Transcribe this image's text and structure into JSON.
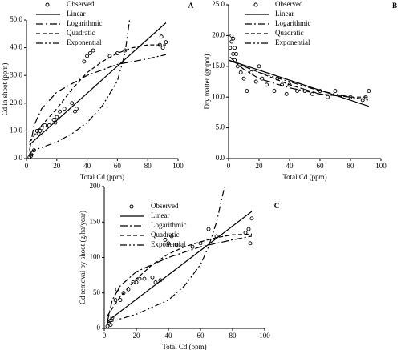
{
  "chart_data": [
    {
      "type": "line",
      "panel_label": "A",
      "xlabel": "Total Cd (ppm)",
      "ylabel": "Cd in shoot (ppm)",
      "xlim": [
        0,
        100
      ],
      "ylim": [
        0,
        50
      ],
      "xticks": [
        0,
        20,
        40,
        60,
        80,
        100
      ],
      "yticks": [
        {
          "value": 0,
          "label": "0.0"
        },
        {
          "value": 10,
          "label": "10.0"
        },
        {
          "value": 20,
          "label": "20.0"
        },
        {
          "value": 30,
          "label": "30.0"
        },
        {
          "value": 40,
          "label": "40.0"
        },
        {
          "value": 50,
          "label": "50.0"
        }
      ],
      "series": [
        {
          "name": "Observed",
          "mode": "markers",
          "color": "#000000",
          "x": [
            2,
            3,
            3,
            4,
            5,
            7,
            8,
            9,
            10,
            12,
            15,
            18,
            19,
            20,
            22,
            25,
            30,
            32,
            33,
            38,
            40,
            42,
            44,
            55,
            60,
            65,
            88,
            89,
            90,
            92
          ],
          "values": [
            0.5,
            1,
            1.5,
            2,
            3,
            10,
            9,
            10,
            11,
            12,
            12,
            14,
            13,
            15,
            17,
            18,
            20,
            17,
            18,
            35,
            37,
            38,
            39,
            37,
            38,
            39,
            41,
            44,
            40,
            42
          ]
        },
        {
          "name": "Linear",
          "mode": "lines",
          "dash": "none",
          "color": "#000000",
          "x": [
            2,
            92
          ],
          "values": [
            5,
            49
          ]
        },
        {
          "name": "Logarithmic",
          "mode": "lines",
          "dash": "9 3 2 3",
          "color": "#000000",
          "x": [
            2,
            5,
            10,
            20,
            40,
            60,
            80,
            92
          ],
          "values": [
            3,
            12,
            18,
            24,
            30,
            34,
            36,
            37.5
          ]
        },
        {
          "name": "Quadratic",
          "mode": "lines",
          "dash": "5 3",
          "color": "#000000",
          "x": [
            2,
            10,
            20,
            30,
            40,
            50,
            60,
            70,
            80,
            92
          ],
          "values": [
            6,
            12,
            18,
            25,
            31,
            35,
            38,
            40,
            41,
            41
          ]
        },
        {
          "name": "Exponential",
          "mode": "lines",
          "dash": "8 3 2 3 2 3",
          "color": "#000000",
          "x": [
            2,
            10,
            20,
            30,
            40,
            50,
            60,
            65,
            68
          ],
          "values": [
            2.5,
            4,
            6,
            9,
            13,
            19,
            28,
            38,
            50
          ]
        }
      ]
    },
    {
      "type": "line",
      "panel_label": "B",
      "xlabel": "Total Cd (ppm)",
      "ylabel": "Dry matter (gr/pot)",
      "xlim": [
        0,
        100
      ],
      "ylim": [
        0,
        25
      ],
      "xticks": [
        0,
        20,
        40,
        60,
        80,
        100
      ],
      "yticks": [
        {
          "value": 0,
          "label": "0.0"
        },
        {
          "value": 5,
          "label": "5.0"
        },
        {
          "value": 10,
          "label": "10.0"
        },
        {
          "value": 15,
          "label": "15.0"
        },
        {
          "value": 20,
          "label": "20.0"
        },
        {
          "value": 25,
          "label": "25.0"
        }
      ],
      "series": [
        {
          "name": "Observed",
          "mode": "markers",
          "color": "#000000",
          "x": [
            1,
            2,
            2,
            3,
            3,
            4,
            4,
            5,
            6,
            8,
            10,
            12,
            15,
            18,
            20,
            22,
            25,
            30,
            32,
            35,
            38,
            40,
            45,
            50,
            55,
            60,
            65,
            70,
            80,
            88,
            90,
            92
          ],
          "values": [
            18,
            20,
            19,
            17,
            19.5,
            18,
            16,
            17,
            15,
            14,
            13,
            11,
            14,
            12.5,
            15,
            13,
            12,
            11,
            13,
            12,
            10.5,
            12,
            11,
            11,
            10.5,
            11,
            10,
            11,
            10,
            9.5,
            10,
            11
          ]
        },
        {
          "name": "Linear",
          "mode": "lines",
          "dash": "none",
          "color": "#000000",
          "x": [
            0,
            92
          ],
          "values": [
            16,
            8.5
          ]
        },
        {
          "name": "Logarithmic",
          "mode": "lines",
          "dash": "9 3 2 3",
          "color": "#000000",
          "x": [
            1,
            5,
            10,
            20,
            40,
            60,
            80,
            92
          ],
          "values": [
            16.5,
            15.5,
            14.5,
            13,
            11.5,
            10.5,
            10,
            9.5
          ]
        },
        {
          "name": "Quadratic",
          "mode": "lines",
          "dash": "5 3",
          "color": "#000000",
          "x": [
            0,
            20,
            40,
            60,
            80,
            92
          ],
          "values": [
            16,
            14,
            12,
            10.5,
            10,
            10
          ]
        },
        {
          "name": "Exponential",
          "mode": "lines",
          "dash": "8 3 2 3 2 3",
          "color": "#000000",
          "x": [
            0,
            20,
            40,
            60,
            80,
            92
          ],
          "values": [
            16,
            14,
            12.5,
            11,
            10,
            9.5
          ]
        }
      ]
    },
    {
      "type": "line",
      "panel_label": "C",
      "xlabel": "Total Cd (ppm)",
      "ylabel": "Cd removal by shoot (g/ha/year)",
      "xlim": [
        0,
        100
      ],
      "ylim": [
        0,
        200
      ],
      "xticks": [
        0,
        20,
        40,
        60,
        80,
        100
      ],
      "yticks": [
        0,
        50,
        100,
        150,
        200
      ],
      "series": [
        {
          "name": "Observed",
          "mode": "markers",
          "color": "#000000",
          "x": [
            2,
            3,
            4,
            5,
            7,
            8,
            10,
            12,
            15,
            18,
            20,
            22,
            25,
            30,
            32,
            35,
            38,
            40,
            42,
            45,
            55,
            60,
            65,
            70,
            88,
            90,
            91,
            92
          ],
          "values": [
            3,
            8,
            5,
            15,
            40,
            55,
            40,
            50,
            55,
            65,
            65,
            70,
            70,
            72,
            65,
            68,
            125,
            120,
            130,
            118,
            115,
            120,
            140,
            130,
            135,
            140,
            120,
            155
          ]
        },
        {
          "name": "Linear",
          "mode": "lines",
          "dash": "none",
          "color": "#000000",
          "x": [
            2,
            92
          ],
          "values": [
            10,
            165
          ]
        },
        {
          "name": "Logarithmic",
          "mode": "lines",
          "dash": "9 3 2 3",
          "color": "#000000",
          "x": [
            2,
            5,
            10,
            20,
            40,
            60,
            80,
            92
          ],
          "values": [
            10,
            40,
            60,
            80,
            100,
            115,
            125,
            130
          ]
        },
        {
          "name": "Quadratic",
          "mode": "lines",
          "dash": "5 3",
          "color": "#000000",
          "x": [
            2,
            10,
            20,
            30,
            40,
            50,
            60,
            70,
            80,
            92
          ],
          "values": [
            18,
            45,
            70,
            90,
            105,
            115,
            122,
            128,
            132,
            133
          ]
        },
        {
          "name": "Exponential",
          "mode": "lines",
          "dash": "8 3 2 3 2 3",
          "color": "#000000",
          "x": [
            2,
            20,
            40,
            50,
            60,
            65,
            70,
            75
          ],
          "values": [
            8,
            20,
            40,
            60,
            90,
            115,
            150,
            200
          ]
        }
      ]
    }
  ]
}
